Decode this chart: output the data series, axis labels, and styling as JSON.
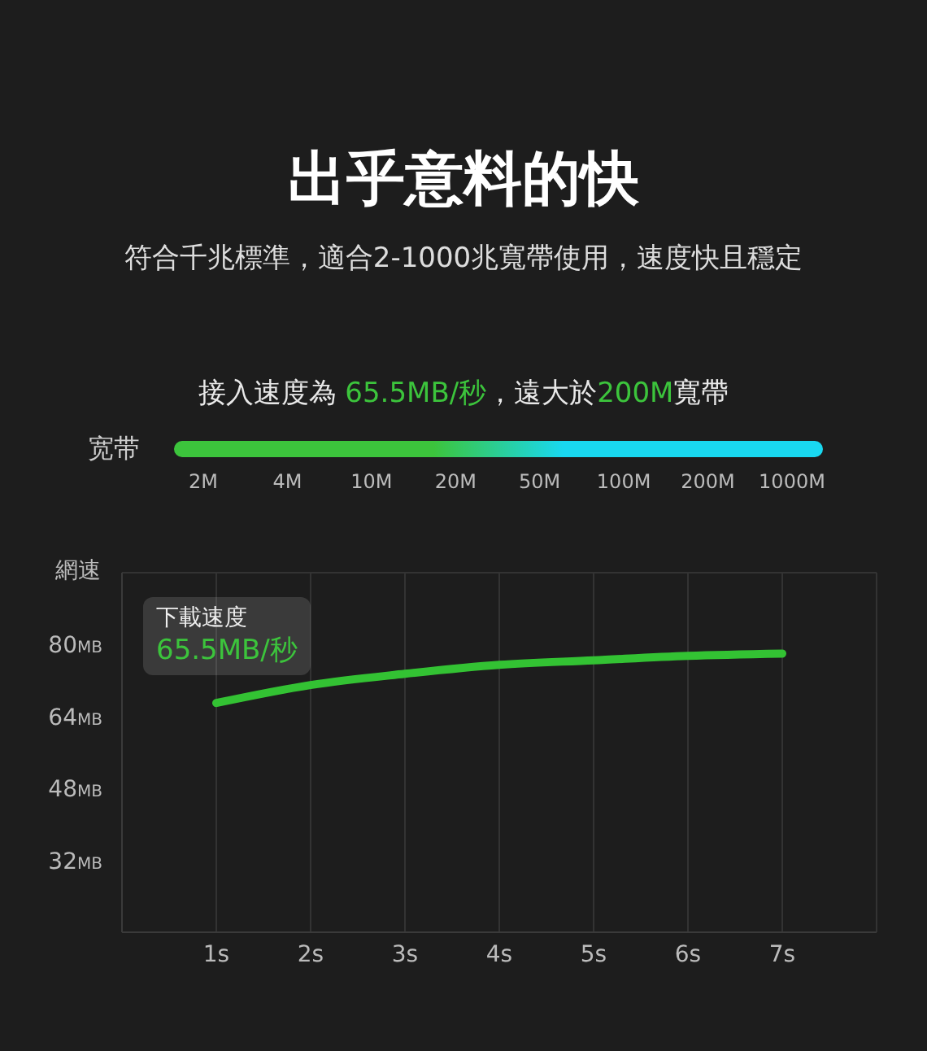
{
  "chart_data": [
    {
      "type": "other",
      "title": "出乎意料的快",
      "subtitle": "符合千兆標準，適合2-1000兆寬帶使用，速度快且穩定",
      "annotations": [
        "接入速度為 65.5MB/秒，遠大於200M寬帶"
      ],
      "ylabel": "宽带",
      "categories": [
        "2M",
        "4M",
        "10M",
        "20M",
        "50M",
        "100M",
        "200M",
        "1000M"
      ]
    },
    {
      "type": "line",
      "ylabel": "網速",
      "annotations": [
        "下載速度",
        "65.5MB/秒"
      ],
      "x": [
        1,
        2,
        3,
        4,
        5,
        6,
        7
      ],
      "xlim": [
        0,
        8
      ],
      "xticks": [
        {
          "value": 1,
          "label": "1s"
        },
        {
          "value": 2,
          "label": "2s"
        },
        {
          "value": 3,
          "label": "3s"
        },
        {
          "value": 4,
          "label": "4s"
        },
        {
          "value": 5,
          "label": "5s"
        },
        {
          "value": 6,
          "label": "6s"
        },
        {
          "value": 7,
          "label": "7s"
        }
      ],
      "ylim": [
        16,
        96
      ],
      "yticks": [
        {
          "value": 32,
          "label": "32MB"
        },
        {
          "value": 48,
          "label": "48MB"
        },
        {
          "value": 64,
          "label": "64MB"
        },
        {
          "value": 80,
          "label": "80MB"
        }
      ],
      "grid": true,
      "series": [
        {
          "color": "#33c233",
          "values": [
            67,
            71,
            73.5,
            75.5,
            76.5,
            77.5,
            78
          ]
        }
      ]
    }
  ]
}
